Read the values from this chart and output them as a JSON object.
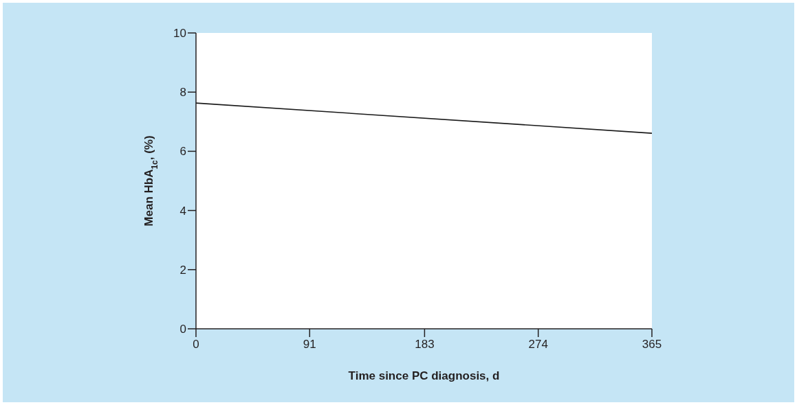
{
  "chart_data": {
    "type": "line",
    "xlabel": "Time since PC diagnosis, d",
    "ylabel": "Mean HbA$_{1c}$, (%)",
    "x": [
      0,
      365
    ],
    "series": [
      {
        "color": "#1a1a1a",
        "values": [
          7.63,
          6.61
        ]
      }
    ],
    "xlim": [
      0,
      365
    ],
    "xticks": [
      0,
      91,
      183,
      274,
      365
    ],
    "ylim": [
      0,
      10
    ],
    "yticks": [
      0,
      2,
      4,
      6,
      8,
      10
    ],
    "marker": "none",
    "line_style": "solid"
  }
}
